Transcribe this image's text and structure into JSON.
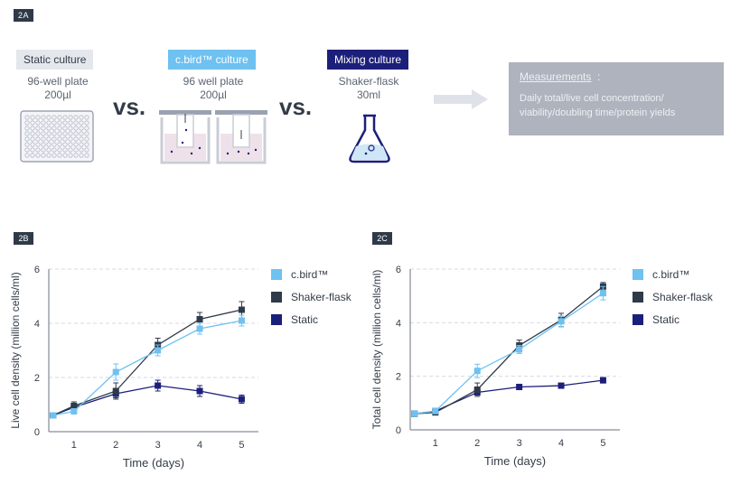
{
  "panel_a": {
    "tag": "2A",
    "static": {
      "label": "Static culture",
      "line1": "96-well plate",
      "line2": "200µl"
    },
    "cbird": {
      "label": "c.bird™ culture",
      "line1": "96  well plate",
      "line2": "200µl"
    },
    "mixing": {
      "label": "Mixing culture",
      "line1": "Shaker-flask",
      "line2": "30ml"
    },
    "vs": "vs.",
    "measurements": {
      "title": "Measurements",
      "colon": ":",
      "body": "Daily total/live cell concentration/ viability/doubling time/protein yields"
    },
    "colors": {
      "static_label_bg": "#e4e7ec",
      "cbird_label_bg": "#6ec1f0",
      "mixing_label_bg": "#1c1f7a",
      "measurements_bg": "#aeb3bd"
    }
  },
  "chart_data": [
    {
      "tag": "2B",
      "type": "line",
      "ylabel": "Live cell density (million cells/ml)",
      "xlabel": "Time (days)",
      "xlim": [
        0.4,
        5.4
      ],
      "ylim": [
        0,
        6
      ],
      "xticks": [
        1,
        2,
        3,
        4,
        5
      ],
      "yticks": [
        0,
        2,
        4,
        6
      ],
      "grid": "horizontal-dashed",
      "legend": "top-right",
      "series": [
        {
          "name": "c.bird™",
          "color": "#6ec1f0",
          "x": [
            0.5,
            1,
            2,
            3,
            4,
            5
          ],
          "y": [
            0.6,
            0.75,
            2.2,
            3.0,
            3.8,
            4.1
          ],
          "err": [
            0,
            0.1,
            0.3,
            0.2,
            0.2,
            0.2
          ]
        },
        {
          "name": "Shaker-flask",
          "color": "#2f3a48",
          "x": [
            0.5,
            1,
            2,
            3,
            4,
            5
          ],
          "y": [
            0.6,
            0.95,
            1.5,
            3.2,
            4.15,
            4.5
          ],
          "err": [
            0,
            0.15,
            0.3,
            0.25,
            0.25,
            0.3
          ]
        },
        {
          "name": "Static",
          "color": "#1c1f7a",
          "x": [
            0.5,
            1,
            2,
            3,
            4,
            5
          ],
          "y": [
            0.6,
            0.9,
            1.4,
            1.7,
            1.5,
            1.2
          ],
          "err": [
            0,
            0.1,
            0.15,
            0.2,
            0.2,
            0.15
          ]
        }
      ]
    },
    {
      "tag": "2C",
      "type": "line",
      "ylabel": "Total cell density (million cells/ml)",
      "xlabel": "Time (days)",
      "xlim": [
        0.4,
        5.4
      ],
      "ylim": [
        0,
        6
      ],
      "xticks": [
        1,
        2,
        3,
        4,
        5
      ],
      "yticks": [
        0,
        2,
        4,
        6
      ],
      "grid": "horizontal-dashed",
      "legend": "top-right",
      "series": [
        {
          "name": "c.bird™",
          "color": "#6ec1f0",
          "x": [
            0.5,
            1,
            2,
            3,
            4,
            5
          ],
          "y": [
            0.6,
            0.7,
            2.2,
            3.0,
            4.05,
            5.1
          ],
          "err": [
            0,
            0.05,
            0.25,
            0.15,
            0.2,
            0.25
          ]
        },
        {
          "name": "Shaker-flask",
          "color": "#2f3a48",
          "x": [
            0.5,
            1,
            2,
            3,
            4,
            5
          ],
          "y": [
            0.6,
            0.65,
            1.5,
            3.15,
            4.1,
            5.35
          ],
          "err": [
            0,
            0.05,
            0.25,
            0.2,
            0.25,
            0.15
          ]
        },
        {
          "name": "Static",
          "color": "#1c1f7a",
          "x": [
            0.5,
            1,
            2,
            3,
            4,
            5
          ],
          "y": [
            0.6,
            0.7,
            1.4,
            1.6,
            1.65,
            1.85
          ],
          "err": [
            0,
            0.05,
            0.1,
            0.1,
            0.08,
            0.1
          ]
        }
      ]
    }
  ]
}
